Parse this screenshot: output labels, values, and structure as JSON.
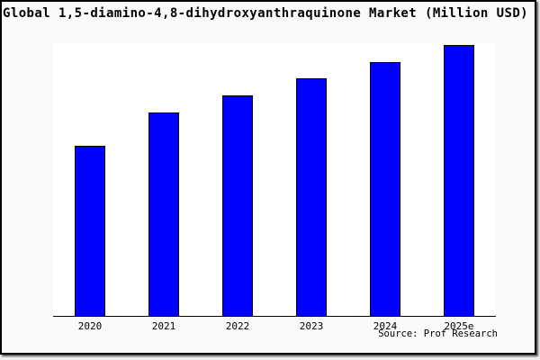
{
  "page": {
    "outer_background": "#f1f1f1",
    "panel_background": "#fafafa",
    "panel_border_color": "#000000"
  },
  "chart_data": {
    "type": "bar",
    "title": "Global 1,5-diamino-4,8-dihydroxyanthraquinone Market (Million USD)",
    "categories": [
      "2020",
      "2021",
      "2022",
      "2023",
      "2024",
      "2025e"
    ],
    "values": [
      62.8,
      75.1,
      81.4,
      87.7,
      93.7,
      100
    ],
    "value_basis": "relative index, 2025e = 100 (chart displays no y-axis ticks or value labels)",
    "xlabel": "",
    "ylabel": "",
    "ylim": [
      0,
      100
    ],
    "grid": false,
    "legend": "none",
    "bar_color": "#0000ff",
    "bar_border_color": "#000000",
    "plot_background": "#ffffff",
    "axis_color": "#000000",
    "source": "Source: Prof Research"
  }
}
